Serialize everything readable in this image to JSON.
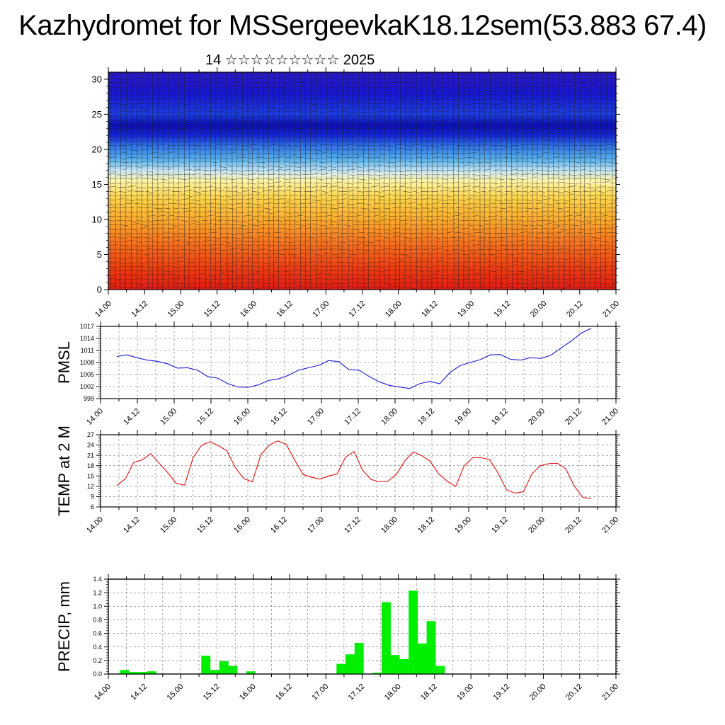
{
  "title": "Kazhydromet for MSSergeevkaK18.12sem(53.883 67.4)",
  "subtitle": "14 ☆☆☆☆☆☆☆☆☆ 2025",
  "colors": {
    "pmsl_line": "#1a1ad6",
    "temp_line": "#e01010",
    "precip_bar": "#00ee00",
    "cross_warm": "#e8241a",
    "cross_mid": "#ffee66",
    "cross_cold": "#0a10d8"
  },
  "chart_data": [
    {
      "id": "cross_section",
      "type": "heatmap",
      "title": "",
      "xlabel": "",
      "ylabel": "",
      "ylim": [
        0,
        31
      ],
      "yticks": [
        "0",
        "5",
        "10",
        "15",
        "20",
        "25",
        "30"
      ],
      "xticks": [
        "14.00",
        "14.12",
        "15.00",
        "15.12",
        "16.00",
        "16.12",
        "17.00",
        "17.12",
        "18.00",
        "18.12",
        "19.00",
        "19.12",
        "20.00",
        "20.12",
        "21.00"
      ],
      "x": [
        "14.00",
        "15.00",
        "16.00",
        "17.00",
        "18.00",
        "19.00",
        "20.00",
        "20.12",
        "21.00"
      ],
      "freezing_level": [
        17,
        17,
        16.2,
        16.2,
        16.5,
        16.5,
        16.5,
        15.5,
        15
      ],
      "cold_core_level": [
        23,
        23,
        23,
        23,
        23,
        23,
        23,
        23,
        23
      ]
    },
    {
      "id": "pmsl",
      "type": "line",
      "ylabel": "PMSL",
      "ylim": [
        999,
        1017
      ],
      "yticks": [
        "999",
        "1002",
        "1005",
        "1008",
        "1011",
        "1014",
        "1017"
      ],
      "xticks": [
        "14.00",
        "14.12",
        "15.00",
        "15.12",
        "16.00",
        "16.12",
        "17.00",
        "17.12",
        "18.00",
        "18.12",
        "19.00",
        "19.12",
        "20.00",
        "20.12",
        "21.00"
      ],
      "series": [
        {
          "values": [
            1009.5,
            1009.9,
            1009.2,
            1008.6,
            1008.3,
            1007.7,
            1006.6,
            1006.7,
            1006.1,
            1004.5,
            1004.1,
            1002.7,
            1001.9,
            1001.8,
            1002.4,
            1003.5,
            1003.9,
            1004.8,
            1006.1,
            1006.7,
            1007.3,
            1008.5,
            1008.2,
            1006.2,
            1006.1,
            1004.5,
            1003.2,
            1002.3,
            1001.9,
            1001.5,
            1002.7,
            1003.3,
            1002.7,
            1005.5,
            1007.2,
            1008.0,
            1008.7,
            1009.9,
            1010.0,
            1008.8,
            1008.6,
            1009.2,
            1009.0,
            1009.8,
            1011.6,
            1013.3,
            1015.3,
            1016.5
          ]
        }
      ]
    },
    {
      "id": "temp2m",
      "type": "line",
      "ylabel": "TEMP at 2 M",
      "ylim": [
        6,
        27
      ],
      "yticks": [
        "6",
        "9",
        "12",
        "15",
        "18",
        "21",
        "24",
        "27"
      ],
      "xticks": [
        "14.00",
        "14.12",
        "15.00",
        "15.12",
        "16.00",
        "16.12",
        "17.00",
        "17.12",
        "18.00",
        "18.12",
        "19.00",
        "19.12",
        "20.00",
        "20.12",
        "21.00"
      ],
      "series": [
        {
          "values": [
            12.2,
            14.2,
            18.9,
            19.7,
            21.5,
            18.7,
            16.0,
            12.9,
            12.3,
            20.3,
            23.9,
            25.0,
            23.8,
            22.3,
            17.4,
            14.2,
            13.3,
            21.2,
            24.0,
            25.2,
            24.2,
            19.6,
            15.4,
            14.6,
            14.1,
            15.0,
            15.6,
            20.5,
            22.1,
            16.7,
            14.0,
            13.3,
            13.5,
            15.5,
            19.4,
            22.0,
            20.9,
            19.3,
            15.6,
            13.5,
            11.9,
            17.9,
            20.3,
            20.3,
            19.8,
            15.9,
            11.0,
            10.0,
            10.4,
            15.6,
            18.0,
            18.6,
            18.7,
            17.1,
            12.1,
            8.8,
            8.4
          ]
        }
      ]
    },
    {
      "id": "precip",
      "type": "bar",
      "ylabel": "PRECIP, mm",
      "ylim": [
        0,
        1.4
      ],
      "yticks": [
        "0.0",
        "0.2",
        "0.4",
        "0.6",
        "0.8",
        "1.0",
        "1.2",
        "1.4"
      ],
      "xticks": [
        "14.00",
        "14.12",
        "15.00",
        "15.12",
        "16.00",
        "16.12",
        "17.00",
        "17.12",
        "18.00",
        "18.12",
        "19.00",
        "19.12",
        "20.00",
        "20.12",
        "21.00"
      ],
      "values": [
        0,
        0.06,
        0.03,
        0.03,
        0.04,
        0,
        0,
        0,
        0,
        0,
        0.27,
        0.06,
        0.19,
        0.12,
        0,
        0.04,
        0,
        0,
        0,
        0,
        0,
        0,
        0,
        0,
        0,
        0.15,
        0.29,
        0.46,
        0,
        0.02,
        1.06,
        0.28,
        0.22,
        1.23,
        0.45,
        0.78,
        0.12,
        0,
        0,
        0,
        0,
        0,
        0,
        0,
        0,
        0,
        0,
        0,
        0,
        0,
        0,
        0,
        0,
        0,
        0,
        0
      ]
    }
  ]
}
